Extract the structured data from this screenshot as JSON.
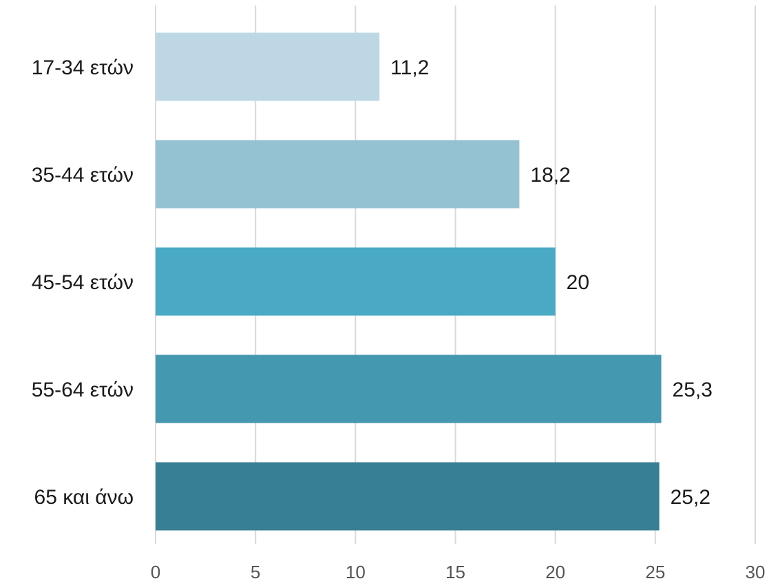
{
  "chart_data": {
    "type": "bar",
    "orientation": "horizontal",
    "categories": [
      "17-34 ετών",
      "35-44 ετών",
      "45-54 ετών",
      "55-64 ετών",
      "65 και άνω"
    ],
    "values": [
      11.2,
      18.2,
      20,
      25.3,
      25.2
    ],
    "value_labels": [
      "11,2",
      "18,2",
      "20",
      "25,3",
      "25,2"
    ],
    "colors": [
      "#bdd8e4",
      "#95c2d3",
      "#4aaac5",
      "#4498b0",
      "#377f94"
    ],
    "xlim": [
      0,
      30
    ],
    "xticks": [
      0,
      5,
      10,
      15,
      20,
      25,
      30
    ],
    "xtick_labels": [
      "0",
      "5",
      "10",
      "15",
      "20",
      "25",
      "30"
    ],
    "grid": "vertical",
    "gridline_color": "#d9d9d9",
    "title": "",
    "xlabel": "",
    "ylabel": ""
  }
}
